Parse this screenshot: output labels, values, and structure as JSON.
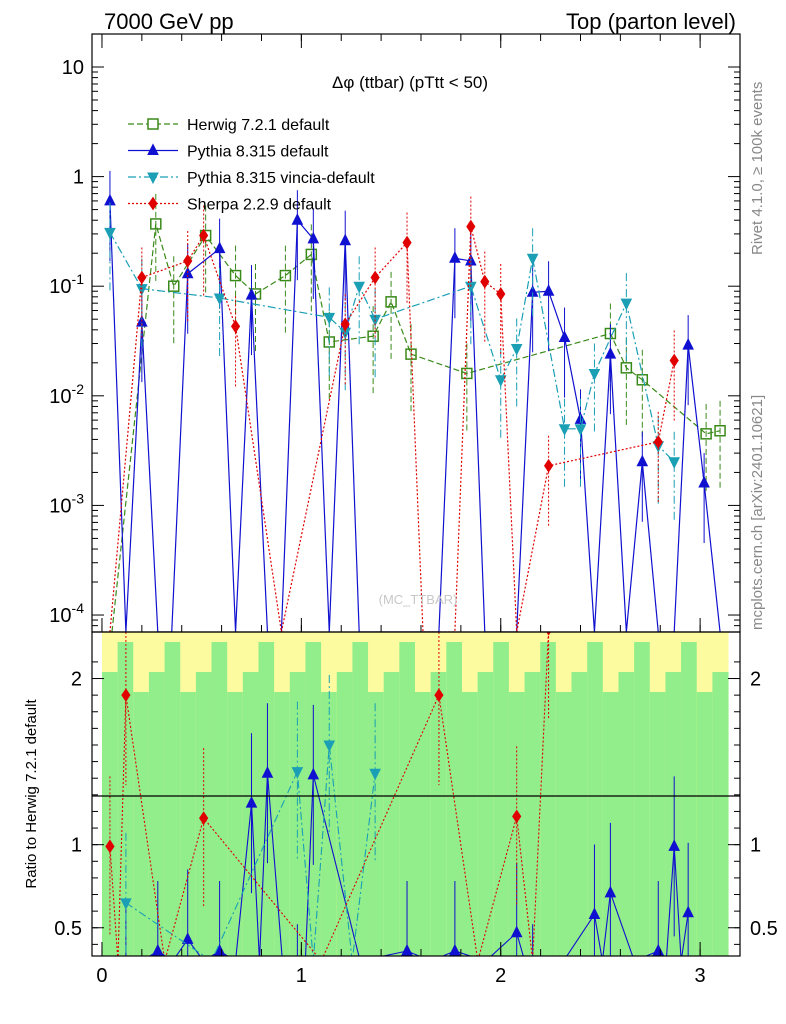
{
  "header": {
    "left": "7000 GeV pp",
    "right": "Top (parton level)"
  },
  "side": {
    "rivet": "Rivet 4.1.0, ≥ 100k events",
    "mcplots": "mcplots.cern.ch [arXiv:2401.10621]"
  },
  "chart_data": {
    "type": "line",
    "title": "Δφ (ttbar) (pTtt < 50)",
    "watermark": "(MC_TTBAR)",
    "xlabel": "",
    "ylabel_upper": "",
    "ylabel_lower": "Ratio to Herwig 7.2.1 default",
    "xlim": [
      -0.05,
      3.2
    ],
    "ylim_upper": [
      7e-05,
      20
    ],
    "ylim_lower": [
      0.33,
      2.28
    ],
    "y_scale_upper": "log",
    "x_ticks": [
      "0",
      "1",
      "2",
      "3"
    ],
    "y_ticks_upper": [
      "10",
      "1",
      "10^-1",
      "10^-2",
      "10^-3",
      "10^-4"
    ],
    "y_ticks_lower": [
      "2",
      "1",
      "0.5"
    ],
    "legend_position": "top-left",
    "series": [
      {
        "name": "Herwig 7.2.1 default",
        "color": "#3a8a1a",
        "marker": "open-square",
        "x": [
          0.05,
          0.27,
          0.36,
          0.52,
          0.67,
          0.77,
          0.92,
          1.05,
          1.14,
          1.36,
          1.45,
          1.55,
          1.83,
          2.55,
          2.63,
          2.71,
          3.03,
          3.1
        ],
        "values": [
          7e-05,
          0.37,
          0.1,
          0.29,
          0.125,
          0.085,
          0.125,
          0.195,
          0.031,
          0.035,
          0.072,
          0.024,
          0.016,
          0.037,
          0.018,
          0.014,
          0.0045,
          0.0048
        ]
      },
      {
        "name": "Pythia 8.315 default",
        "color": "#1010d0",
        "marker": "filled-triangle-up",
        "x": [
          0.04,
          0.12,
          0.2,
          0.28,
          0.35,
          0.43,
          0.59,
          0.67,
          0.75,
          0.83,
          0.9,
          0.98,
          1.06,
          1.14,
          1.22,
          1.29,
          1.37,
          1.45,
          1.53,
          1.61,
          1.69,
          1.77,
          1.85,
          1.92,
          2.0,
          2.08,
          2.16,
          2.24,
          2.32,
          2.4,
          2.47,
          2.55,
          2.63,
          2.71,
          2.79,
          2.87,
          2.94,
          3.02,
          3.1
        ],
        "values": [
          0.6,
          7e-05,
          0.047,
          7e-05,
          7e-05,
          0.13,
          0.22,
          7e-05,
          0.083,
          7e-05,
          7e-05,
          0.4,
          0.27,
          7e-05,
          0.26,
          7e-05,
          7e-05,
          7e-05,
          7e-05,
          7e-05,
          7e-05,
          0.18,
          0.17,
          7e-05,
          7e-05,
          7e-05,
          0.088,
          0.09,
          0.034,
          0.0061,
          7e-05,
          0.024,
          7e-05,
          0.0025,
          7e-05,
          7e-05,
          0.029,
          0.0016,
          7e-05
        ]
      },
      {
        "name": "Pythia 8.315 vincia-default",
        "color": "#1a9fb5",
        "marker": "filled-triangle-down",
        "x": [
          0.04,
          0.2,
          0.59,
          1.14,
          1.22,
          1.29,
          1.37,
          1.85,
          2.0,
          2.08,
          2.16,
          2.32,
          2.4,
          2.47,
          2.63,
          2.79,
          2.87
        ],
        "values": [
          0.31,
          0.095,
          0.078,
          0.052,
          0.038,
          0.1,
          0.05,
          0.1,
          0.014,
          0.027,
          0.18,
          0.005,
          0.005,
          0.016,
          0.07,
          0.0035,
          0.0025
        ]
      },
      {
        "name": "Sherpa 2.2.9 default",
        "color": "#e00000",
        "marker": "filled-diamond",
        "x": [
          0.04,
          0.2,
          0.43,
          0.51,
          0.67,
          0.9,
          1.22,
          1.37,
          1.53,
          1.61,
          1.69,
          1.77,
          1.85,
          1.92,
          2.0,
          2.08,
          2.24,
          2.79,
          2.87
        ],
        "values": [
          7e-05,
          0.12,
          0.17,
          0.29,
          0.043,
          7e-05,
          0.045,
          0.12,
          0.25,
          7e-05,
          7e-05,
          7e-05,
          0.35,
          0.11,
          0.085,
          7e-05,
          0.0023,
          0.0038,
          0.021
        ]
      }
    ],
    "ratio_points": {
      "pythia_default": {
        "x": [
          0.12,
          0.28,
          0.43,
          0.59,
          0.75,
          0.83,
          0.98,
          1.06,
          1.53,
          1.77,
          2.08,
          2.16,
          2.47,
          2.55,
          2.79,
          2.87,
          2.94
        ],
        "values": [
          0.2,
          0.36,
          0.43,
          0.36,
          1.25,
          1.43,
          0.1,
          1.42,
          0.36,
          0.36,
          0.47,
          0.1,
          0.58,
          0.71,
          0.36,
          0.99,
          0.59
        ]
      },
      "pythia_vincia": {
        "x": [
          0.12,
          0.98,
          1.14,
          1.37
        ],
        "values": [
          0.65,
          1.44,
          1.6,
          1.43
        ]
      },
      "sherpa": {
        "x": [
          0.04,
          0.12,
          0.51,
          1.69,
          2.08,
          2.24
        ],
        "values": [
          0.99,
          1.9,
          1.16,
          1.9,
          1.17,
          2.3
        ]
      }
    }
  }
}
